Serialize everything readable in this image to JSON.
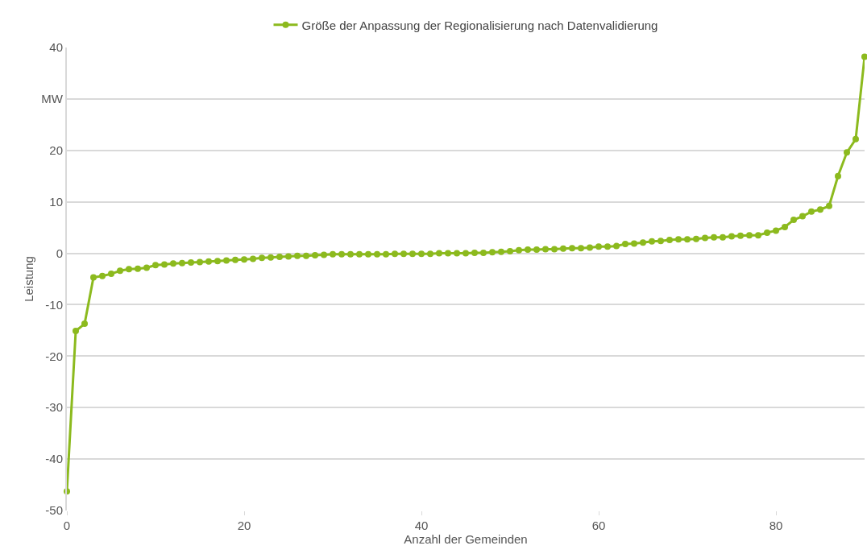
{
  "chart_data": {
    "type": "line",
    "xlabel": "Anzahl der Gemeinden",
    "ylabel": "Leistung",
    "x": [
      0,
      1,
      2,
      3,
      4,
      5,
      6,
      7,
      8,
      9,
      10,
      11,
      12,
      13,
      14,
      15,
      16,
      17,
      18,
      19,
      20,
      21,
      22,
      23,
      24,
      25,
      26,
      27,
      28,
      29,
      30,
      31,
      32,
      33,
      34,
      35,
      36,
      37,
      38,
      39,
      40,
      41,
      42,
      43,
      44,
      45,
      46,
      47,
      48,
      49,
      50,
      51,
      52,
      53,
      54,
      55,
      56,
      57,
      58,
      59,
      60,
      61,
      62,
      63,
      64,
      65,
      66,
      67,
      68,
      69,
      70,
      71,
      72,
      73,
      74,
      75,
      76,
      77,
      78,
      79,
      80,
      81,
      82,
      83,
      84,
      85,
      86,
      87,
      88,
      89,
      90
    ],
    "series": [
      {
        "name": "Größe der Anpassung der Regionalisierung nach Datenvalidierung",
        "color": "#8cba1e",
        "values": [
          -46.3,
          -15.1,
          -13.7,
          -4.7,
          -4.4,
          -4.0,
          -3.4,
          -3.1,
          -3.0,
          -2.8,
          -2.3,
          -2.2,
          -2.0,
          -1.9,
          -1.8,
          -1.7,
          -1.6,
          -1.5,
          -1.4,
          -1.3,
          -1.2,
          -1.1,
          -0.9,
          -0.8,
          -0.7,
          -0.6,
          -0.5,
          -0.5,
          -0.4,
          -0.3,
          -0.2,
          -0.2,
          -0.2,
          -0.2,
          -0.2,
          -0.2,
          -0.2,
          -0.1,
          -0.1,
          -0.1,
          -0.1,
          -0.1,
          0,
          0,
          0,
          0,
          0.1,
          0.1,
          0.2,
          0.3,
          0.4,
          0.6,
          0.7,
          0.7,
          0.8,
          0.8,
          0.9,
          1.0,
          1.0,
          1.1,
          1.3,
          1.3,
          1.4,
          1.8,
          1.9,
          2.1,
          2.3,
          2.4,
          2.6,
          2.7,
          2.7,
          2.8,
          3.0,
          3.1,
          3.1,
          3.3,
          3.4,
          3.5,
          3.5,
          4.0,
          4.4,
          5.1,
          6.5,
          7.2,
          8.1,
          8.5,
          9.2,
          15.0,
          19.6,
          22.2,
          38.2
        ]
      }
    ],
    "xlim": [
      0,
      90
    ],
    "xticks": [
      0,
      20,
      40,
      60,
      80
    ],
    "ylim": [
      -50,
      40
    ],
    "yticks": [
      -50,
      -40,
      -30,
      -20,
      -10,
      0,
      10,
      20,
      {
        "value": 30,
        "label": "MW"
      },
      40
    ],
    "grid": "y",
    "legend": "top",
    "marker": "circle",
    "line_style": "solid"
  }
}
